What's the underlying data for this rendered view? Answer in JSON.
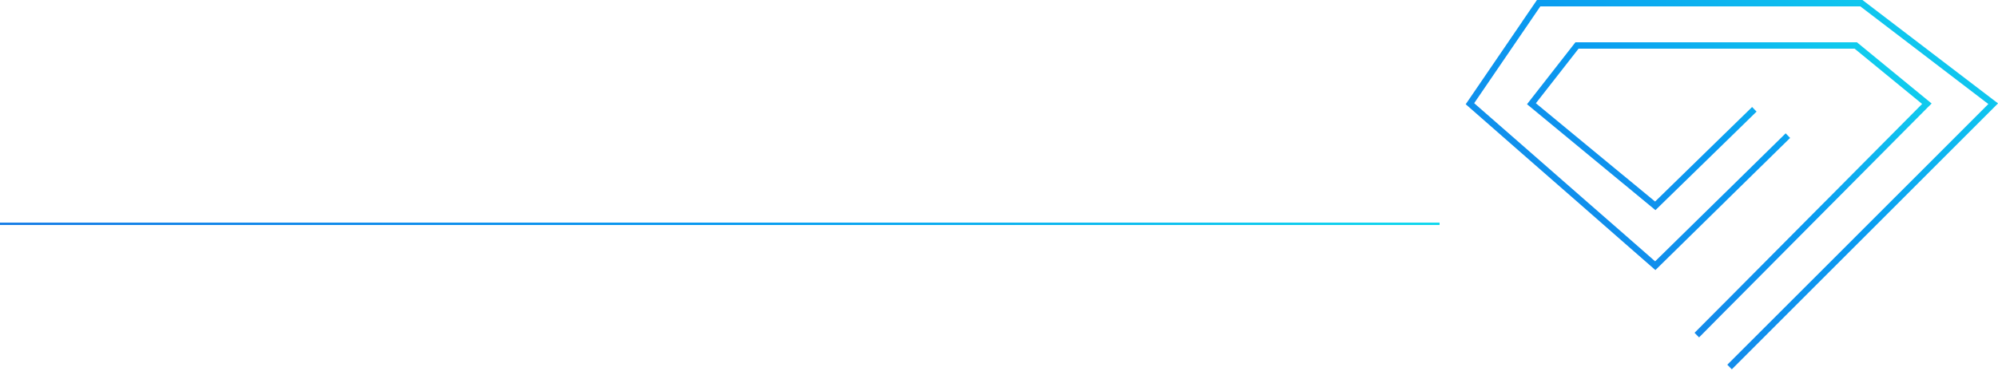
{
  "colors": {
    "gradient_start": "#1a7fe6",
    "gradient_mid": "#0a9af0",
    "gradient_end": "#12d8ee",
    "background": "#ffffff"
  },
  "icons": {
    "logo": "diamond-logo-icon",
    "divider": "horizontal-divider-line"
  }
}
